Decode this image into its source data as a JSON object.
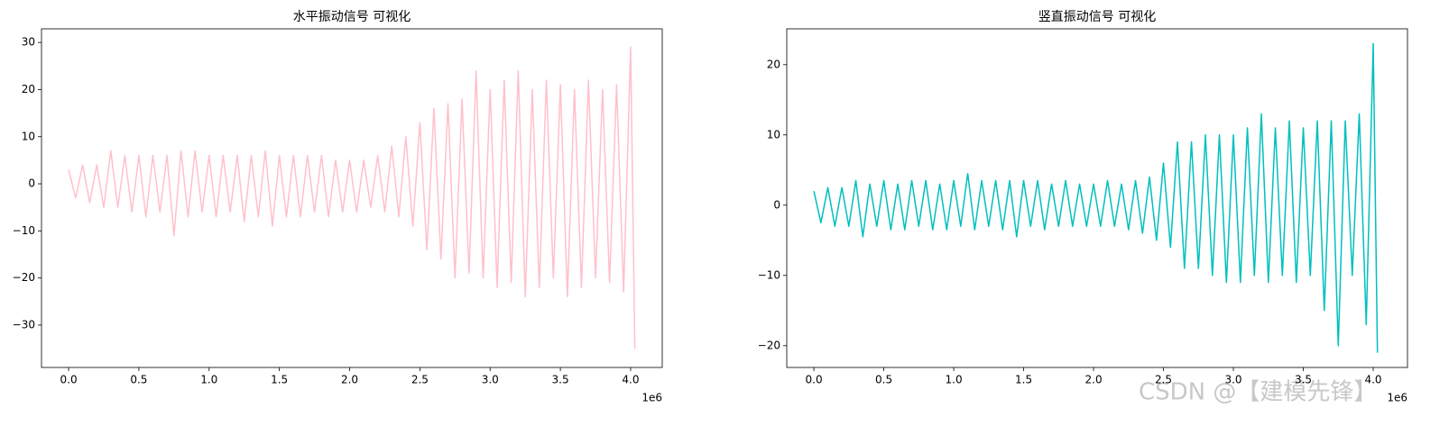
{
  "chart_data": [
    {
      "type": "line",
      "title": "水平振动信号 可视化",
      "x_offset_label": "1e6",
      "x": [
        0,
        50000,
        100000,
        150000,
        200000,
        250000,
        300000,
        350000,
        400000,
        450000,
        500000,
        550000,
        600000,
        650000,
        700000,
        750000,
        800000,
        850000,
        900000,
        950000,
        1000000,
        1050000,
        1100000,
        1150000,
        1200000,
        1250000,
        1300000,
        1350000,
        1400000,
        1450000,
        1500000,
        1550000,
        1600000,
        1650000,
        1700000,
        1750000,
        1800000,
        1850000,
        1900000,
        1950000,
        2000000,
        2050000,
        2100000,
        2150000,
        2200000,
        2250000,
        2300000,
        2350000,
        2400000,
        2450000,
        2500000,
        2550000,
        2600000,
        2650000,
        2700000,
        2750000,
        2800000,
        2850000,
        2900000,
        2950000,
        3000000,
        3050000,
        3100000,
        3150000,
        3200000,
        3250000,
        3300000,
        3350000,
        3400000,
        3450000,
        3500000,
        3550000,
        3600000,
        3650000,
        3700000,
        3750000,
        3800000,
        3850000,
        3900000,
        3950000,
        4000000,
        4030000
      ],
      "series": [
        {
          "color": "#ffc0cb",
          "values": [
            3,
            -3,
            4,
            -4,
            4,
            -5,
            7,
            -5,
            6,
            -6,
            6,
            -7,
            6,
            -6,
            6,
            -11,
            7,
            -7,
            7,
            -6,
            6,
            -7,
            6,
            -6,
            6,
            -8,
            6,
            -7,
            7,
            -9,
            6,
            -7,
            6,
            -7,
            6,
            -6,
            6,
            -7,
            5,
            -6,
            5,
            -6,
            5,
            -5,
            6,
            -6,
            8,
            -7,
            10,
            -9,
            13,
            -14,
            16,
            -16,
            17,
            -20,
            18,
            -19,
            24,
            -20,
            20,
            -22,
            22,
            -21,
            24,
            -24,
            20,
            -22,
            22,
            -20,
            21,
            -24,
            20,
            -22,
            22,
            -20,
            20,
            -21,
            21,
            -23,
            29,
            -35
          ]
        }
      ],
      "xlim": [
        -193000,
        4225000
      ],
      "xticks": [
        {
          "value": 0,
          "label": "0.0"
        },
        {
          "value": 500000,
          "label": "0.5"
        },
        {
          "value": 1000000,
          "label": "1.0"
        },
        {
          "value": 1500000,
          "label": "1.5"
        },
        {
          "value": 2000000,
          "label": "2.0"
        },
        {
          "value": 2500000,
          "label": "2.5"
        },
        {
          "value": 3000000,
          "label": "3.0"
        },
        {
          "value": 3500000,
          "label": "3.5"
        },
        {
          "value": 4000000,
          "label": "4.0"
        }
      ],
      "ylim": [
        -39,
        32.9
      ],
      "yticks": [
        {
          "value": -30,
          "label": "−30"
        },
        {
          "value": -20,
          "label": "−20"
        },
        {
          "value": -10,
          "label": "−10"
        },
        0,
        10,
        20,
        30
      ]
    },
    {
      "type": "line",
      "title": "竖直振动信号 可视化",
      "x_offset_label": "1e6",
      "x": [
        0,
        50000,
        100000,
        150000,
        200000,
        250000,
        300000,
        350000,
        400000,
        450000,
        500000,
        550000,
        600000,
        650000,
        700000,
        750000,
        800000,
        850000,
        900000,
        950000,
        1000000,
        1050000,
        1100000,
        1150000,
        1200000,
        1250000,
        1300000,
        1350000,
        1400000,
        1450000,
        1500000,
        1550000,
        1600000,
        1650000,
        1700000,
        1750000,
        1800000,
        1850000,
        1900000,
        1950000,
        2000000,
        2050000,
        2100000,
        2150000,
        2200000,
        2250000,
        2300000,
        2350000,
        2400000,
        2450000,
        2500000,
        2550000,
        2600000,
        2650000,
        2700000,
        2750000,
        2800000,
        2850000,
        2900000,
        2950000,
        3000000,
        3050000,
        3100000,
        3150000,
        3200000,
        3250000,
        3300000,
        3350000,
        3400000,
        3450000,
        3500000,
        3550000,
        3600000,
        3650000,
        3700000,
        3750000,
        3800000,
        3850000,
        3900000,
        3950000,
        4000000,
        4030000
      ],
      "series": [
        {
          "color": "#00bfbf",
          "values": [
            2,
            -2.5,
            2.5,
            -3,
            2.5,
            -3,
            3.5,
            -4.5,
            3,
            -3,
            3.5,
            -3.5,
            3,
            -3.5,
            3.5,
            -3,
            3.5,
            -3.5,
            3,
            -3.5,
            3.5,
            -3,
            4.5,
            -3.5,
            3.5,
            -3,
            3.5,
            -3.5,
            3.5,
            -4.5,
            3.5,
            -3,
            3.5,
            -3.5,
            3,
            -3,
            3.5,
            -3,
            3,
            -3,
            3,
            -3,
            3.5,
            -3,
            3,
            -3.5,
            3.5,
            -4,
            4,
            -5,
            6,
            -6,
            9,
            -9,
            9,
            -9,
            10,
            -10,
            10,
            -11,
            10,
            -11,
            11,
            -10,
            13,
            -11,
            11,
            -10,
            12,
            -11,
            11,
            -10,
            12,
            -15,
            12,
            -20,
            12,
            -10,
            13,
            -17,
            23,
            -21
          ]
        }
      ],
      "xlim": [
        -194000,
        4245000
      ],
      "xticks": [
        {
          "value": 0,
          "label": "0.0"
        },
        {
          "value": 500000,
          "label": "0.5"
        },
        {
          "value": 1000000,
          "label": "1.0"
        },
        {
          "value": 1500000,
          "label": "1.5"
        },
        {
          "value": 2000000,
          "label": "2.0"
        },
        {
          "value": 2500000,
          "label": "2.5"
        },
        {
          "value": 3000000,
          "label": "3.0"
        },
        {
          "value": 3500000,
          "label": "3.5"
        },
        {
          "value": 4000000,
          "label": "4.0"
        }
      ],
      "ylim": [
        -23.1,
        25.1
      ],
      "yticks": [
        {
          "value": -20,
          "label": "−20"
        },
        {
          "value": -10,
          "label": "−10"
        },
        0,
        10,
        20
      ]
    }
  ],
  "watermark": "CSDN @【建模先锋】"
}
